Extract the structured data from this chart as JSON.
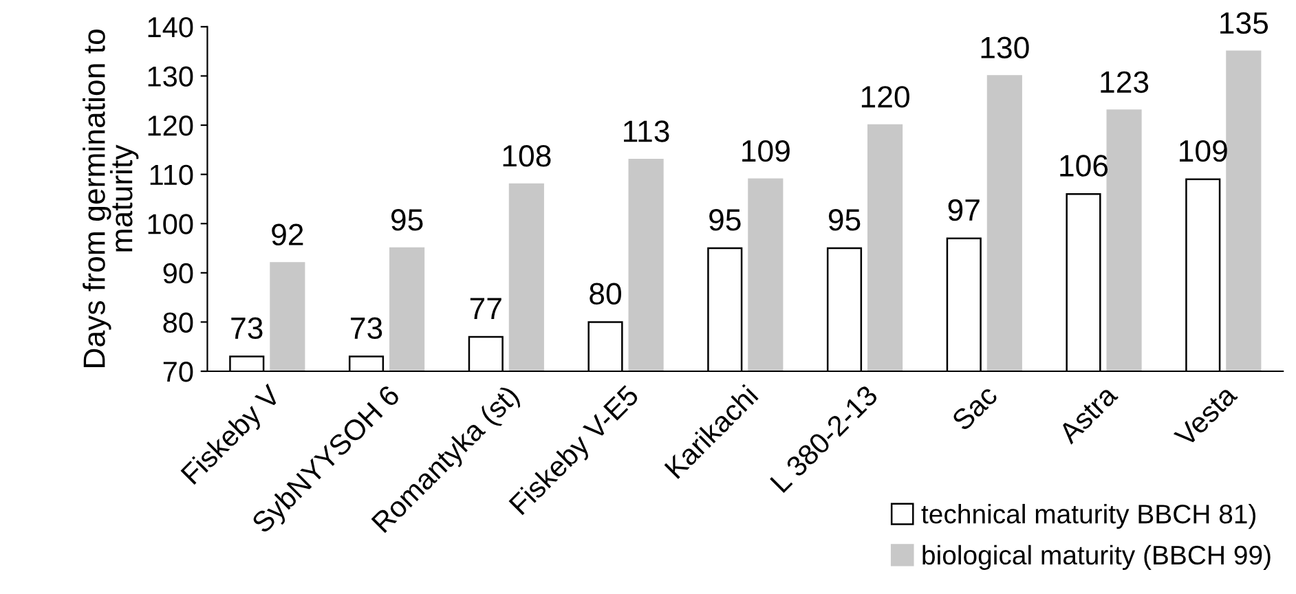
{
  "chart_data": {
    "type": "bar",
    "ylabel": "Days from germination to\nmaturity",
    "categories": [
      "Fiskeby V",
      "SybNYYSOH 6",
      "Romantyka (st)",
      "Fiskeby V-E5",
      "Karikachi",
      "L 380-2-13",
      "Sac",
      "Astra",
      "Vesta"
    ],
    "series": [
      {
        "name": "technical maturity BBCH 81)",
        "color": "#ffffff",
        "values": [
          73,
          73,
          77,
          80,
          95,
          95,
          97,
          106,
          109
        ]
      },
      {
        "name": "biological maturity (BBCH 99)",
        "color": "#c8c8c8",
        "values": [
          92,
          95,
          108,
          113,
          109,
          120,
          130,
          123,
          135
        ]
      }
    ],
    "ylim": [
      70,
      140
    ],
    "yticks": [
      70,
      80,
      90,
      100,
      110,
      120,
      130,
      140
    ],
    "data_labels": true,
    "grid": false,
    "legend": "bottom right"
  }
}
